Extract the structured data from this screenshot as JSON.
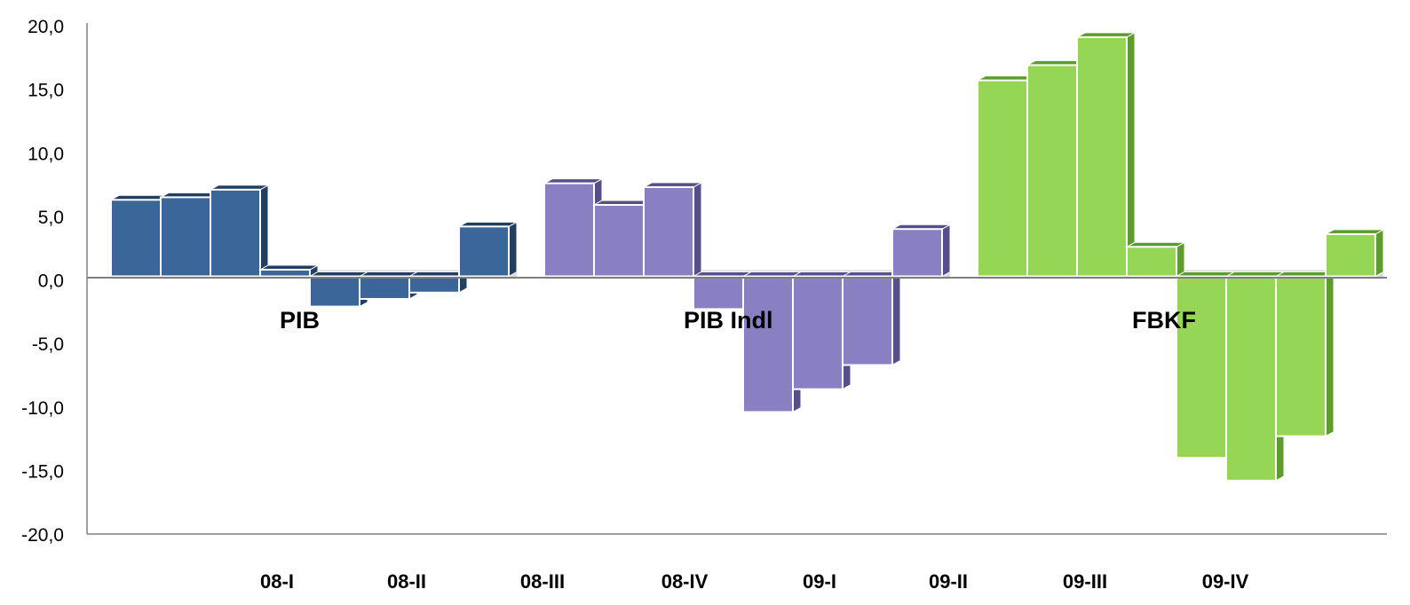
{
  "chart_data": {
    "type": "bar",
    "style": "3d-clustered",
    "ylim": [
      -20,
      20
    ],
    "yticks": [
      20,
      15,
      10,
      5,
      0,
      -5,
      -10,
      -15,
      -20
    ],
    "ytick_labels": [
      "20,0",
      "15,0",
      "10,0",
      "5,0",
      "0,0",
      "-5,0",
      "-10,0",
      "-15,0",
      "-20,0"
    ],
    "categories": [
      "08-I",
      "08-II",
      "08-III",
      "08-IV",
      "09-I",
      "09-II",
      "09-III",
      "09-IV"
    ],
    "grid": false,
    "legend": "none",
    "series": [
      {
        "name": "PIB",
        "color": "#3A6699",
        "shade": "#223E60",
        "values": [
          6.3,
          6.5,
          7.1,
          0.8,
          -2.1,
          -1.5,
          -1.0,
          4.2
        ]
      },
      {
        "name": "PIB Indl",
        "color": "#8880C2",
        "shade": "#56508A",
        "values": [
          7.6,
          5.9,
          7.3,
          -2.3,
          -10.4,
          -8.6,
          -6.7,
          4.0
        ]
      },
      {
        "name": "FBKF",
        "color": "#96D656",
        "shade": "#5E9A2C",
        "values": [
          15.7,
          16.9,
          19.1,
          2.6,
          -14.0,
          -15.8,
          -12.3,
          3.6
        ]
      }
    ]
  }
}
